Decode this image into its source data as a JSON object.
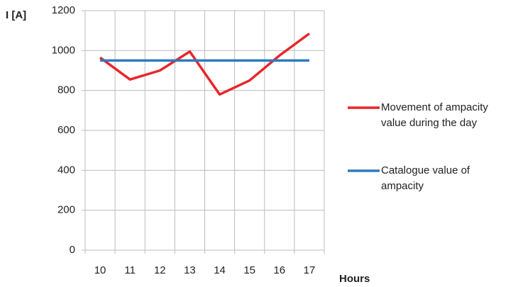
{
  "chart_data": {
    "type": "line",
    "y_label": "I [A]",
    "x_label": "Hours",
    "categories": [
      "10",
      "11",
      "12",
      "13",
      "14",
      "15",
      "16",
      "17"
    ],
    "series": [
      {
        "name": "Movement of ampacity value during the day",
        "color": "#e8262a",
        "values": [
          965,
          855,
          900,
          995,
          780,
          850,
          975,
          1085
        ]
      },
      {
        "name": "Catalogue value of ampacity",
        "color": "#2f7ac0",
        "values": [
          950,
          950,
          950,
          950,
          950,
          950,
          950,
          950
        ]
      }
    ],
    "ylim": [
      0,
      1200
    ],
    "yticks": [
      0,
      200,
      400,
      600,
      800,
      1000,
      1200
    ],
    "grid": true
  }
}
